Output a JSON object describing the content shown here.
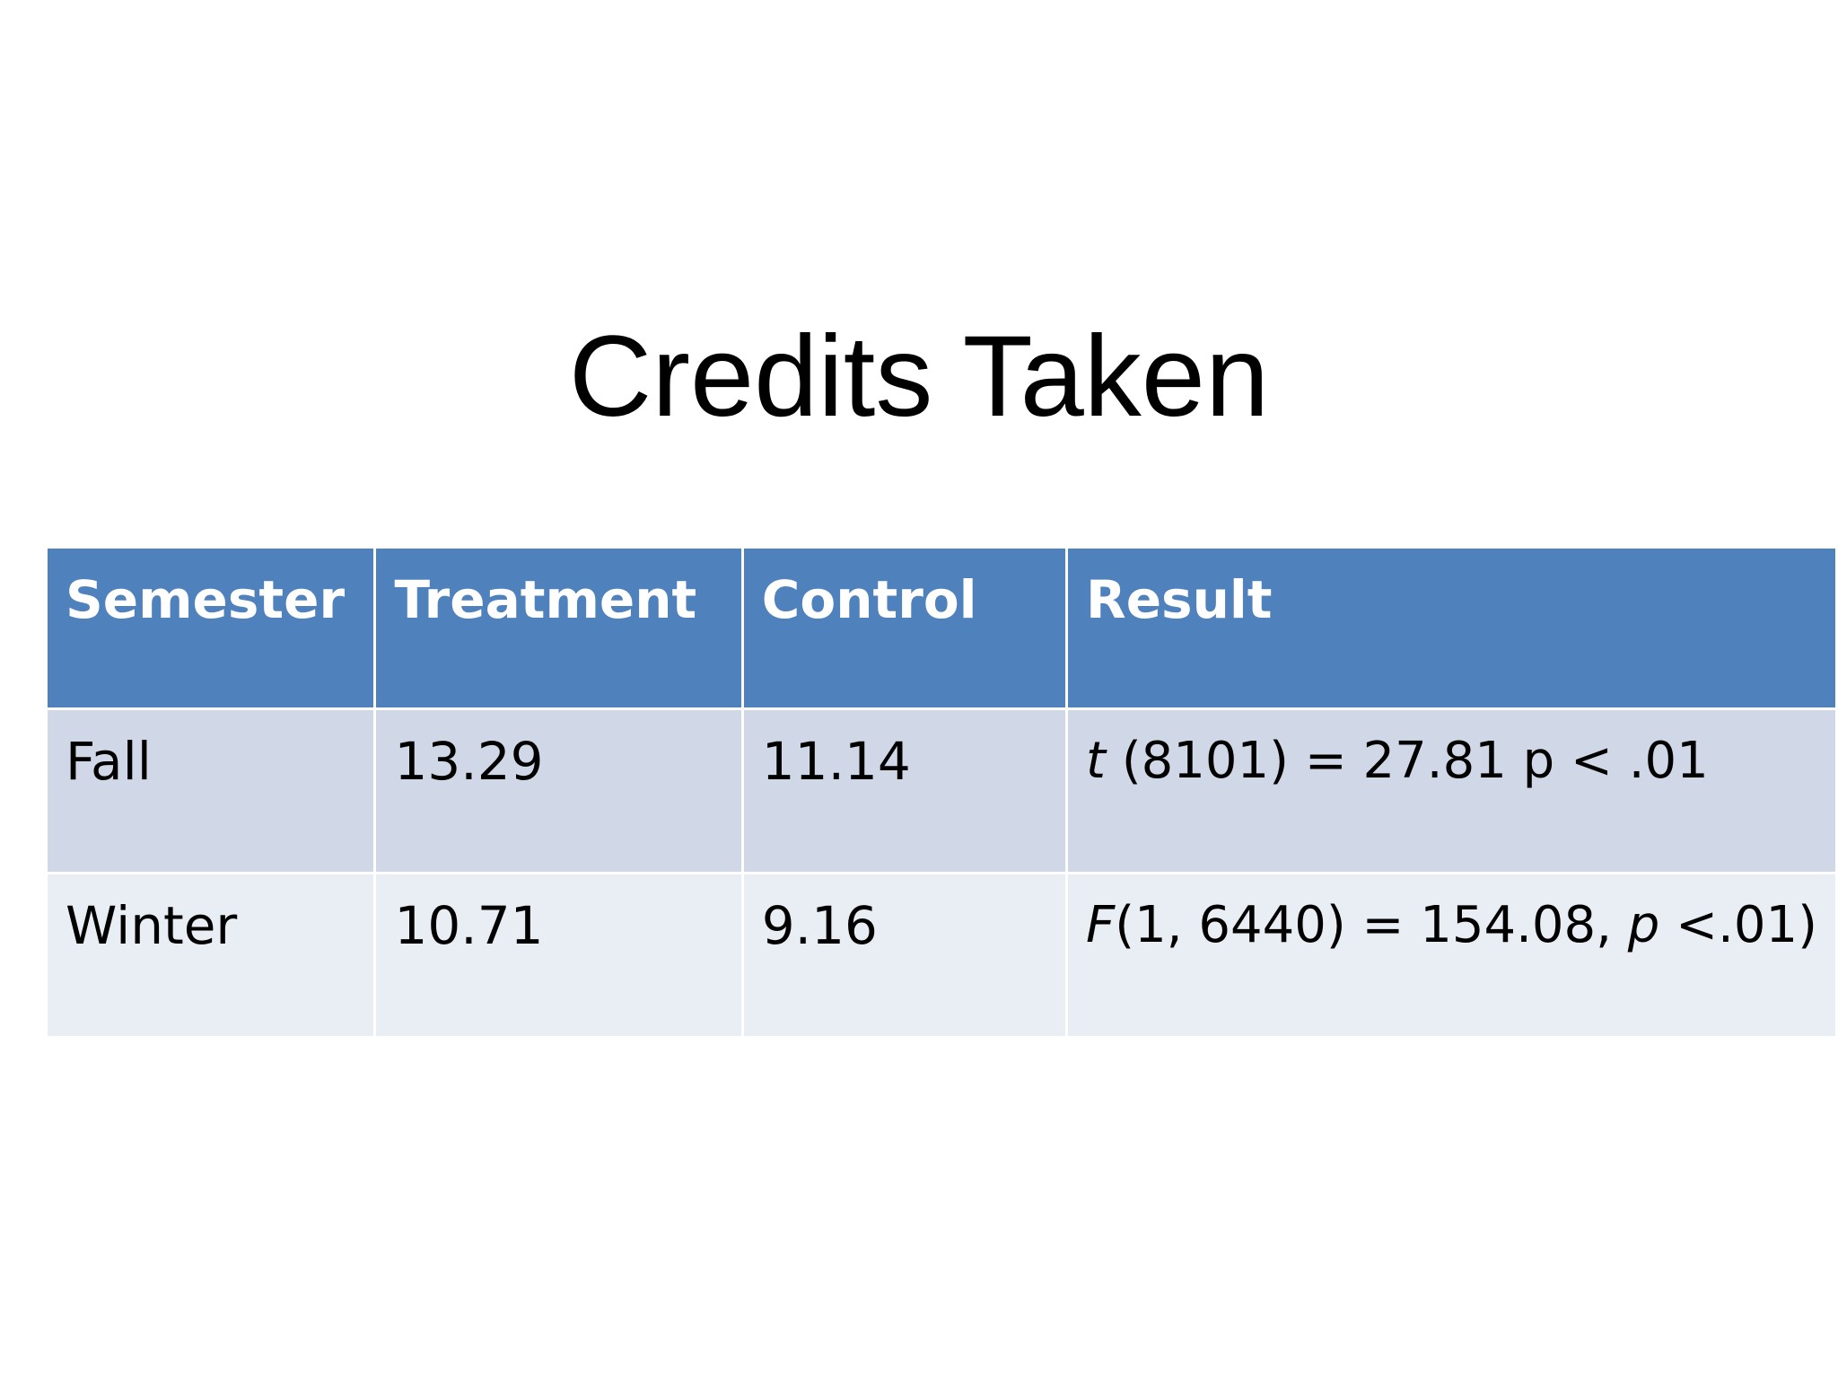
{
  "slide": {
    "title": "Credits Taken"
  },
  "table": {
    "headers": [
      "Semester",
      "Treatment",
      "Control",
      "Result"
    ],
    "rows": [
      {
        "semester": "Fall",
        "treatment": "13.29",
        "control": "11.14",
        "result": {
          "stat_symbol": "t",
          "stat_rest": " (8101) = 27.81 p < .01",
          "p_symbol": "",
          "p_rest": ""
        }
      },
      {
        "semester": "Winter",
        "treatment": "10.71",
        "control": "9.16",
        "result": {
          "stat_symbol": "F",
          "stat_rest": "(1, 6440) = 154.08, ",
          "p_symbol": "p",
          "p_rest": " <.01)"
        }
      }
    ]
  },
  "colors": {
    "header_bg": "#4f81bd",
    "row_odd_bg": "#d0d8e8",
    "row_even_bg": "#e9edf4"
  }
}
